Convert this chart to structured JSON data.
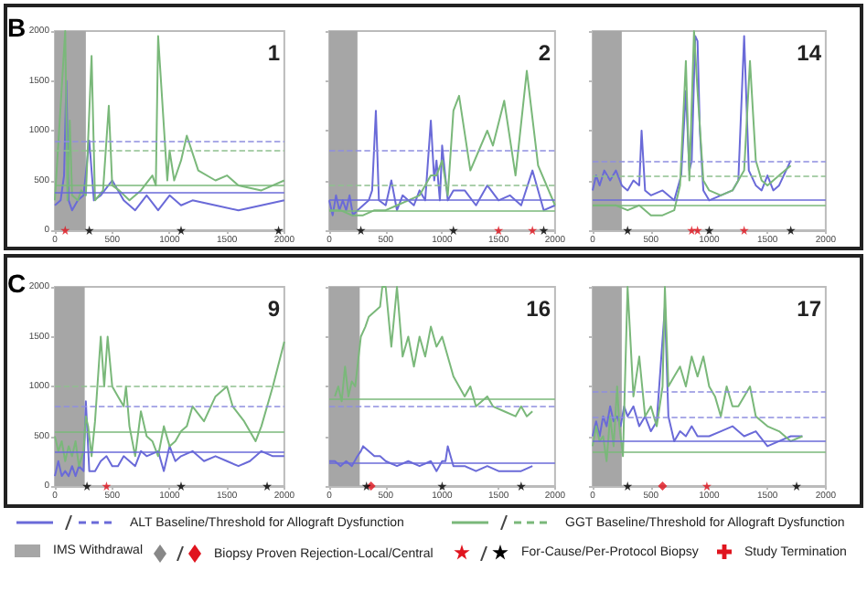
{
  "chart_data": [
    {
      "type": "line",
      "title": "1",
      "annotations": [
        "B"
      ],
      "xlim": [
        0,
        2000
      ],
      "xticks": [
        0,
        500,
        1000,
        1500,
        2000
      ],
      "ylim": [
        0,
        2000
      ],
      "yticks": [
        0,
        500,
        1000,
        1500,
        2000
      ],
      "marker": "none",
      "bands": [
        {
          "axis": "x",
          "from": 0,
          "to": 270,
          "color": "#a6a6a6"
        }
      ],
      "ref_lines": [
        {
          "axis": "y",
          "value": 900,
          "color": "#8f8fe0",
          "line_style": "dashed"
        },
        {
          "axis": "y",
          "value": 800,
          "color": "#8fc08f",
          "line_style": "dashed"
        },
        {
          "axis": "y",
          "value": 450,
          "color": "#7ab87a",
          "line_style": "solid"
        },
        {
          "axis": "y",
          "value": 380,
          "color": "#6a6ad8",
          "line_style": "solid"
        }
      ],
      "series": [
        {
          "color": "#6a6ad8",
          "x": [
            0,
            50,
            80,
            100,
            120,
            150,
            200,
            250,
            300,
            340,
            400,
            500,
            600,
            700,
            800,
            900,
            1000,
            1100,
            1200,
            1400,
            1600,
            1800,
            2000
          ],
          "values": [
            250,
            300,
            550,
            1500,
            300,
            200,
            300,
            350,
            900,
            300,
            350,
            500,
            300,
            200,
            350,
            200,
            350,
            250,
            300,
            250,
            200,
            250,
            300
          ]
        },
        {
          "color": "#7ab87a",
          "x": [
            0,
            90,
            110,
            130,
            150,
            200,
            230,
            270,
            320,
            350,
            420,
            470,
            500,
            560,
            650,
            750,
            850,
            880,
            900,
            980,
            1000,
            1040,
            1100,
            1150,
            1250,
            1400,
            1500,
            1600,
            1800,
            2000
          ],
          "values": [
            300,
            2000,
            300,
            1100,
            350,
            300,
            400,
            350,
            1750,
            300,
            400,
            1250,
            450,
            400,
            300,
            400,
            550,
            450,
            1950,
            500,
            800,
            500,
            700,
            950,
            600,
            500,
            550,
            450,
            400,
            500
          ]
        },
        {
          "type": "scatter",
          "color": "#e0141e",
          "marker": "star",
          "x": [
            90
          ],
          "values": [
            0
          ]
        },
        {
          "type": "scatter",
          "color": "#000000",
          "marker": "star",
          "x": [
            300,
            1100,
            1950
          ],
          "values": [
            0,
            0,
            0
          ]
        }
      ]
    },
    {
      "type": "line",
      "title": "2",
      "tick_labels": "x",
      "xlim": [
        0,
        2000
      ],
      "xticks": [
        0,
        500,
        1000,
        1500,
        2000
      ],
      "ylim": [
        0,
        2000
      ],
      "yticks": [
        0,
        500,
        1000,
        1500,
        2000
      ],
      "marker": "none",
      "bands": [
        {
          "axis": "x",
          "from": 0,
          "to": 250,
          "color": "#a6a6a6"
        }
      ],
      "ref_lines": [
        {
          "axis": "y",
          "value": 800,
          "color": "#8f8fe0",
          "line_style": "dashed"
        },
        {
          "axis": "y",
          "value": 450,
          "color": "#8fc08f",
          "line_style": "dashed"
        },
        {
          "axis": "y",
          "value": 300,
          "color": "#6a6ad8",
          "line_style": "solid"
        },
        {
          "axis": "y",
          "value": 200,
          "color": "#7ab87a",
          "line_style": "solid"
        }
      ],
      "series": [
        {
          "color": "#6a6ad8",
          "x": [
            0,
            30,
            60,
            90,
            120,
            150,
            180,
            210,
            250,
            300,
            350,
            380,
            413,
            440,
            500,
            550,
            600,
            650,
            700,
            750,
            800,
            850,
            900,
            930,
            950,
            980,
            1000,
            1050,
            1100,
            1200,
            1300,
            1400,
            1500,
            1600,
            1700,
            1800,
            1900,
            2000
          ],
          "values": [
            300,
            150,
            350,
            200,
            300,
            200,
            350,
            150,
            200,
            250,
            300,
            400,
            1200,
            300,
            250,
            500,
            200,
            350,
            300,
            250,
            400,
            300,
            1100,
            500,
            700,
            300,
            850,
            300,
            400,
            400,
            250,
            450,
            300,
            350,
            250,
            600,
            200,
            250
          ]
        },
        {
          "color": "#7ab87a",
          "x": [
            0,
            100,
            200,
            300,
            400,
            500,
            600,
            700,
            800,
            900,
            950,
            1000,
            1050,
            1100,
            1150,
            1250,
            1400,
            1450,
            1550,
            1650,
            1750,
            1850,
            2000
          ],
          "values": [
            200,
            200,
            150,
            150,
            200,
            200,
            250,
            300,
            350,
            550,
            550,
            700,
            350,
            1200,
            1350,
            600,
            1000,
            850,
            1300,
            550,
            1600,
            650,
            250
          ]
        },
        {
          "type": "scatter",
          "color": "#e0141e",
          "marker": "star",
          "x": [
            1500,
            1800
          ],
          "values": [
            0,
            0
          ]
        },
        {
          "type": "scatter",
          "color": "#000000",
          "marker": "star",
          "x": [
            280,
            1100,
            1900
          ],
          "values": [
            0,
            0,
            0
          ]
        }
      ]
    },
    {
      "type": "line",
      "title": "14",
      "tick_labels": "x",
      "xlim": [
        0,
        2000
      ],
      "xticks": [
        0,
        500,
        1000,
        1500,
        2000
      ],
      "ylim": [
        0,
        2000
      ],
      "yticks": [
        0,
        500,
        1000,
        1500,
        2000
      ],
      "marker": "none",
      "bands": [
        {
          "axis": "x",
          "from": 0,
          "to": 250,
          "color": "#a6a6a6"
        }
      ],
      "ref_lines": [
        {
          "axis": "y",
          "value": 700,
          "color": "#8f8fe0",
          "line_style": "dashed"
        },
        {
          "axis": "y",
          "value": 550,
          "color": "#8fc08f",
          "line_style": "dashed"
        },
        {
          "axis": "y",
          "value": 300,
          "color": "#6a6ad8",
          "line_style": "solid"
        },
        {
          "axis": "y",
          "value": 250,
          "color": "#7ab87a",
          "line_style": "solid"
        }
      ],
      "series": [
        {
          "color": "#6a6ad8",
          "x": [
            0,
            30,
            60,
            100,
            150,
            200,
            250,
            300,
            350,
            400,
            420,
            450,
            500,
            600,
            700,
            760,
            800,
            830,
            850,
            880,
            900,
            920,
            950,
            1000,
            1100,
            1200,
            1250,
            1300,
            1340,
            1400,
            1450,
            1500,
            1550,
            1600,
            1700
          ],
          "values": [
            400,
            550,
            450,
            600,
            500,
            600,
            450,
            400,
            500,
            450,
            1000,
            400,
            350,
            400,
            300,
            550,
            1400,
            600,
            700,
            1950,
            1900,
            1000,
            400,
            300,
            350,
            400,
            500,
            1950,
            600,
            450,
            400,
            550,
            400,
            450,
            700
          ]
        },
        {
          "color": "#7ab87a",
          "x": [
            0,
            100,
            200,
            300,
            400,
            500,
            600,
            700,
            750,
            800,
            830,
            870,
            900,
            950,
            1000,
            1100,
            1200,
            1300,
            1350,
            1400,
            1450,
            1500,
            1600,
            1700
          ],
          "values": [
            250,
            250,
            250,
            200,
            250,
            150,
            150,
            200,
            450,
            1700,
            500,
            2000,
            1400,
            500,
            400,
            350,
            400,
            600,
            1700,
            700,
            500,
            450,
            550,
            650
          ]
        },
        {
          "type": "scatter",
          "color": "#e0141e",
          "marker": "star",
          "x": [
            850,
            900,
            1300
          ],
          "values": [
            0,
            0,
            0
          ]
        },
        {
          "type": "scatter",
          "color": "#000000",
          "marker": "star",
          "x": [
            300,
            1000,
            1700
          ],
          "values": [
            0,
            0,
            0
          ]
        }
      ]
    },
    {
      "type": "line",
      "title": "9",
      "annotations": [
        "C"
      ],
      "xlim": [
        0,
        2000
      ],
      "xticks": [
        0,
        500,
        1000,
        1500,
        2000
      ],
      "ylim": [
        0,
        2000
      ],
      "yticks": [
        0,
        500,
        1000,
        1500,
        2000
      ],
      "marker": "none",
      "bands": [
        {
          "axis": "x",
          "from": 0,
          "to": 260,
          "color": "#a6a6a6"
        }
      ],
      "ref_lines": [
        {
          "axis": "y",
          "value": 1000,
          "color": "#8fc08f",
          "line_style": "dashed"
        },
        {
          "axis": "y",
          "value": 800,
          "color": "#8f8fe0",
          "line_style": "dashed"
        },
        {
          "axis": "y",
          "value": 550,
          "color": "#7ab87a",
          "line_style": "solid"
        },
        {
          "axis": "y",
          "value": 350,
          "color": "#6a6ad8",
          "line_style": "solid"
        }
      ],
      "series": [
        {
          "color": "#6a6ad8",
          "x": [
            0,
            30,
            60,
            90,
            120,
            150,
            180,
            210,
            250,
            270,
            300,
            350,
            400,
            450,
            500,
            550,
            600,
            700,
            750,
            800,
            900,
            950,
            1000,
            1050,
            1100,
            1200,
            1300,
            1400,
            1500,
            1600,
            1700,
            1800,
            1900,
            2000
          ],
          "values": [
            100,
            250,
            100,
            150,
            100,
            200,
            100,
            200,
            150,
            850,
            150,
            150,
            250,
            300,
            200,
            200,
            300,
            200,
            350,
            300,
            350,
            150,
            400,
            250,
            300,
            350,
            250,
            300,
            250,
            200,
            250,
            350,
            300,
            300
          ]
        },
        {
          "color": "#7ab87a",
          "x": [
            0,
            30,
            60,
            90,
            120,
            150,
            180,
            210,
            250,
            270,
            290,
            320,
            350,
            400,
            430,
            460,
            500,
            550,
            600,
            620,
            650,
            700,
            750,
            800,
            850,
            900,
            950,
            1000,
            1050,
            1100,
            1150,
            1200,
            1300,
            1400,
            1500,
            1550,
            1650,
            1750,
            1800,
            1900,
            2000
          ],
          "values": [
            500,
            350,
            450,
            250,
            400,
            300,
            450,
            200,
            350,
            700,
            600,
            300,
            650,
            1500,
            1000,
            1500,
            1000,
            900,
            800,
            1000,
            600,
            300,
            750,
            500,
            450,
            300,
            600,
            400,
            450,
            550,
            600,
            800,
            650,
            900,
            1000,
            800,
            650,
            450,
            600,
            1000,
            1450
          ]
        },
        {
          "type": "scatter",
          "color": "#e0141e",
          "marker": "star",
          "x": [
            450
          ],
          "values": [
            0
          ]
        },
        {
          "type": "scatter",
          "color": "#000000",
          "marker": "star",
          "x": [
            280,
            1100,
            1850
          ],
          "values": [
            0,
            0,
            0
          ]
        }
      ]
    },
    {
      "type": "line",
      "title": "16",
      "tick_labels": "x",
      "xlim": [
        0,
        2000
      ],
      "xticks": [
        0,
        500,
        1000,
        1500,
        2000
      ],
      "ylim": [
        0,
        2000
      ],
      "yticks": [
        0,
        500,
        1000,
        1500,
        2000
      ],
      "marker": "none",
      "bands": [
        {
          "axis": "x",
          "from": 0,
          "to": 270,
          "color": "#a6a6a6"
        }
      ],
      "ref_lines": [
        {
          "axis": "y",
          "value": 870,
          "color": "#7ab87a",
          "line_style": "solid"
        },
        {
          "axis": "y",
          "value": 810,
          "color": "#8f8fe0",
          "line_style": "dashed"
        },
        {
          "axis": "y",
          "value": 240,
          "color": "#6a6ad8",
          "line_style": "solid"
        }
      ],
      "series": [
        {
          "color": "#6a6ad8",
          "x": [
            0,
            50,
            100,
            150,
            200,
            250,
            280,
            300,
            400,
            450,
            500,
            600,
            700,
            800,
            900,
            950,
            1000,
            1030,
            1050,
            1100,
            1200,
            1300,
            1400,
            1500,
            1600,
            1700,
            1800
          ],
          "values": [
            250,
            250,
            200,
            250,
            200,
            300,
            350,
            400,
            300,
            300,
            250,
            200,
            250,
            200,
            250,
            150,
            250,
            250,
            400,
            200,
            200,
            150,
            200,
            150,
            150,
            150,
            200
          ]
        },
        {
          "color": "#7ab87a",
          "x": [
            50,
            80,
            110,
            140,
            170,
            200,
            230,
            260,
            280,
            320,
            350,
            400,
            450,
            470,
            500,
            550,
            600,
            650,
            700,
            750,
            800,
            850,
            900,
            950,
            1000,
            1100,
            1150,
            1200,
            1250,
            1300,
            1400,
            1450,
            1550,
            1650,
            1700,
            1750,
            1800
          ],
          "values": [
            900,
            1000,
            850,
            1200,
            900,
            1050,
            1000,
            1300,
            1500,
            1600,
            1700,
            1750,
            1800,
            2000,
            2000,
            1400,
            2000,
            1300,
            1500,
            1200,
            1500,
            1300,
            1600,
            1400,
            1500,
            1100,
            1000,
            900,
            1000,
            800,
            900,
            800,
            750,
            700,
            800,
            700,
            750
          ]
        },
        {
          "type": "scatter",
          "color": "#e0141e",
          "marker": "diamond",
          "x": [
            370
          ],
          "values": [
            0
          ]
        },
        {
          "type": "scatter",
          "color": "#000000",
          "marker": "star",
          "x": [
            330,
            1000,
            1700
          ],
          "values": [
            0,
            0,
            0
          ]
        }
      ]
    },
    {
      "type": "line",
      "title": "17",
      "tick_labels": "x",
      "xlim": [
        0,
        2000
      ],
      "xticks": [
        0,
        500,
        1000,
        1500,
        2000
      ],
      "ylim": [
        0,
        2000
      ],
      "yticks": [
        0,
        500,
        1000,
        1500,
        2000
      ],
      "marker": "none",
      "annotations": [
        "ALT Baseline/Threshold for Allograft Dysfunction",
        "GGT Baseline/Threshold for Allograft Dysfunction",
        "IMS Withdrawal",
        "Biopsy Proven Rejection-Local/Central",
        "For-Cause/Per-Protocol Biopsy",
        "Study Termination"
      ],
      "bands": [
        {
          "axis": "x",
          "from": 0,
          "to": 250,
          "color": "#a6a6a6"
        }
      ],
      "ref_lines": [
        {
          "axis": "y",
          "value": 950,
          "color": "#8f8fe0",
          "line_style": "dashed"
        },
        {
          "axis": "y",
          "value": 700,
          "color": "#8f8fe0",
          "line_style": "dashed"
        },
        {
          "axis": "y",
          "value": 450,
          "color": "#6a6ad8",
          "line_style": "solid"
        },
        {
          "axis": "y",
          "value": 350,
          "color": "#7ab87a",
          "line_style": "solid"
        }
      ],
      "series": [
        {
          "color": "#6a6ad8",
          "x": [
            0,
            30,
            60,
            90,
            120,
            150,
            180,
            210,
            240,
            270,
            300,
            350,
            400,
            450,
            500,
            550,
            620,
            650,
            700,
            750,
            800,
            850,
            900,
            950,
            1000,
            1100,
            1200,
            1300,
            1400,
            1500,
            1600,
            1700,
            1800
          ],
          "values": [
            500,
            650,
            500,
            700,
            600,
            800,
            650,
            700,
            600,
            800,
            700,
            800,
            600,
            700,
            550,
            650,
            1800,
            700,
            450,
            550,
            500,
            600,
            500,
            500,
            500,
            550,
            600,
            500,
            550,
            400,
            450,
            500,
            500
          ]
        },
        {
          "color": "#7ab87a",
          "x": [
            0,
            30,
            60,
            90,
            120,
            150,
            180,
            210,
            230,
            260,
            300,
            350,
            400,
            450,
            500,
            550,
            600,
            620,
            650,
            700,
            750,
            800,
            850,
            900,
            950,
            1000,
            1050,
            1100,
            1150,
            1200,
            1250,
            1300,
            1350,
            1400,
            1500,
            1600,
            1700,
            1800
          ],
          "values": [
            400,
            600,
            450,
            500,
            250,
            700,
            400,
            1000,
            600,
            300,
            2000,
            900,
            1300,
            700,
            800,
            600,
            1000,
            2000,
            1000,
            1100,
            1200,
            1000,
            1300,
            1100,
            1300,
            1000,
            900,
            700,
            1000,
            800,
            800,
            900,
            1000,
            700,
            600,
            550,
            450,
            500
          ]
        },
        {
          "type": "scatter",
          "color": "#e0141e",
          "marker": "diamond",
          "x": [
            600
          ],
          "values": [
            0
          ]
        },
        {
          "type": "scatter",
          "color": "#e0141e",
          "marker": "star",
          "x": [
            980
          ],
          "values": [
            0
          ]
        },
        {
          "type": "scatter",
          "color": "#000000",
          "marker": "star",
          "x": [
            300,
            1750
          ],
          "values": [
            0,
            0
          ]
        }
      ]
    }
  ]
}
